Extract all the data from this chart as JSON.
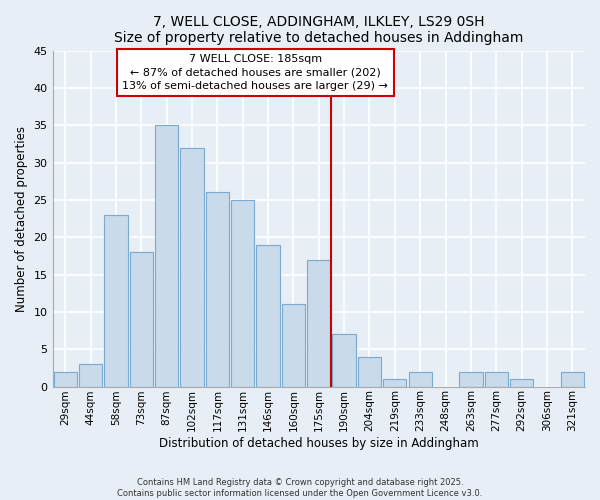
{
  "title": "7, WELL CLOSE, ADDINGHAM, ILKLEY, LS29 0SH",
  "subtitle": "Size of property relative to detached houses in Addingham",
  "xlabel": "Distribution of detached houses by size in Addingham",
  "ylabel": "Number of detached properties",
  "bar_labels": [
    "29sqm",
    "44sqm",
    "58sqm",
    "73sqm",
    "87sqm",
    "102sqm",
    "117sqm",
    "131sqm",
    "146sqm",
    "160sqm",
    "175sqm",
    "190sqm",
    "204sqm",
    "219sqm",
    "233sqm",
    "248sqm",
    "263sqm",
    "277sqm",
    "292sqm",
    "306sqm",
    "321sqm"
  ],
  "bar_values": [
    2,
    3,
    23,
    18,
    35,
    32,
    26,
    25,
    19,
    11,
    17,
    7,
    4,
    1,
    2,
    0,
    2,
    2,
    1,
    0,
    2
  ],
  "bar_color": "#c9daea",
  "bar_edge_color": "#7aaad0",
  "ylim": [
    0,
    45
  ],
  "yticks": [
    0,
    5,
    10,
    15,
    20,
    25,
    30,
    35,
    40,
    45
  ],
  "vline_x": 10.5,
  "vline_color": "#cc0000",
  "annotation_title": "7 WELL CLOSE: 185sqm",
  "annotation_line1": "← 87% of detached houses are smaller (202)",
  "annotation_line2": "13% of semi-detached houses are larger (29) →",
  "footer1": "Contains HM Land Registry data © Crown copyright and database right 2025.",
  "footer2": "Contains public sector information licensed under the Open Government Licence v3.0.",
  "bg_color": "#e8eef5",
  "grid_color": "#ffffff"
}
